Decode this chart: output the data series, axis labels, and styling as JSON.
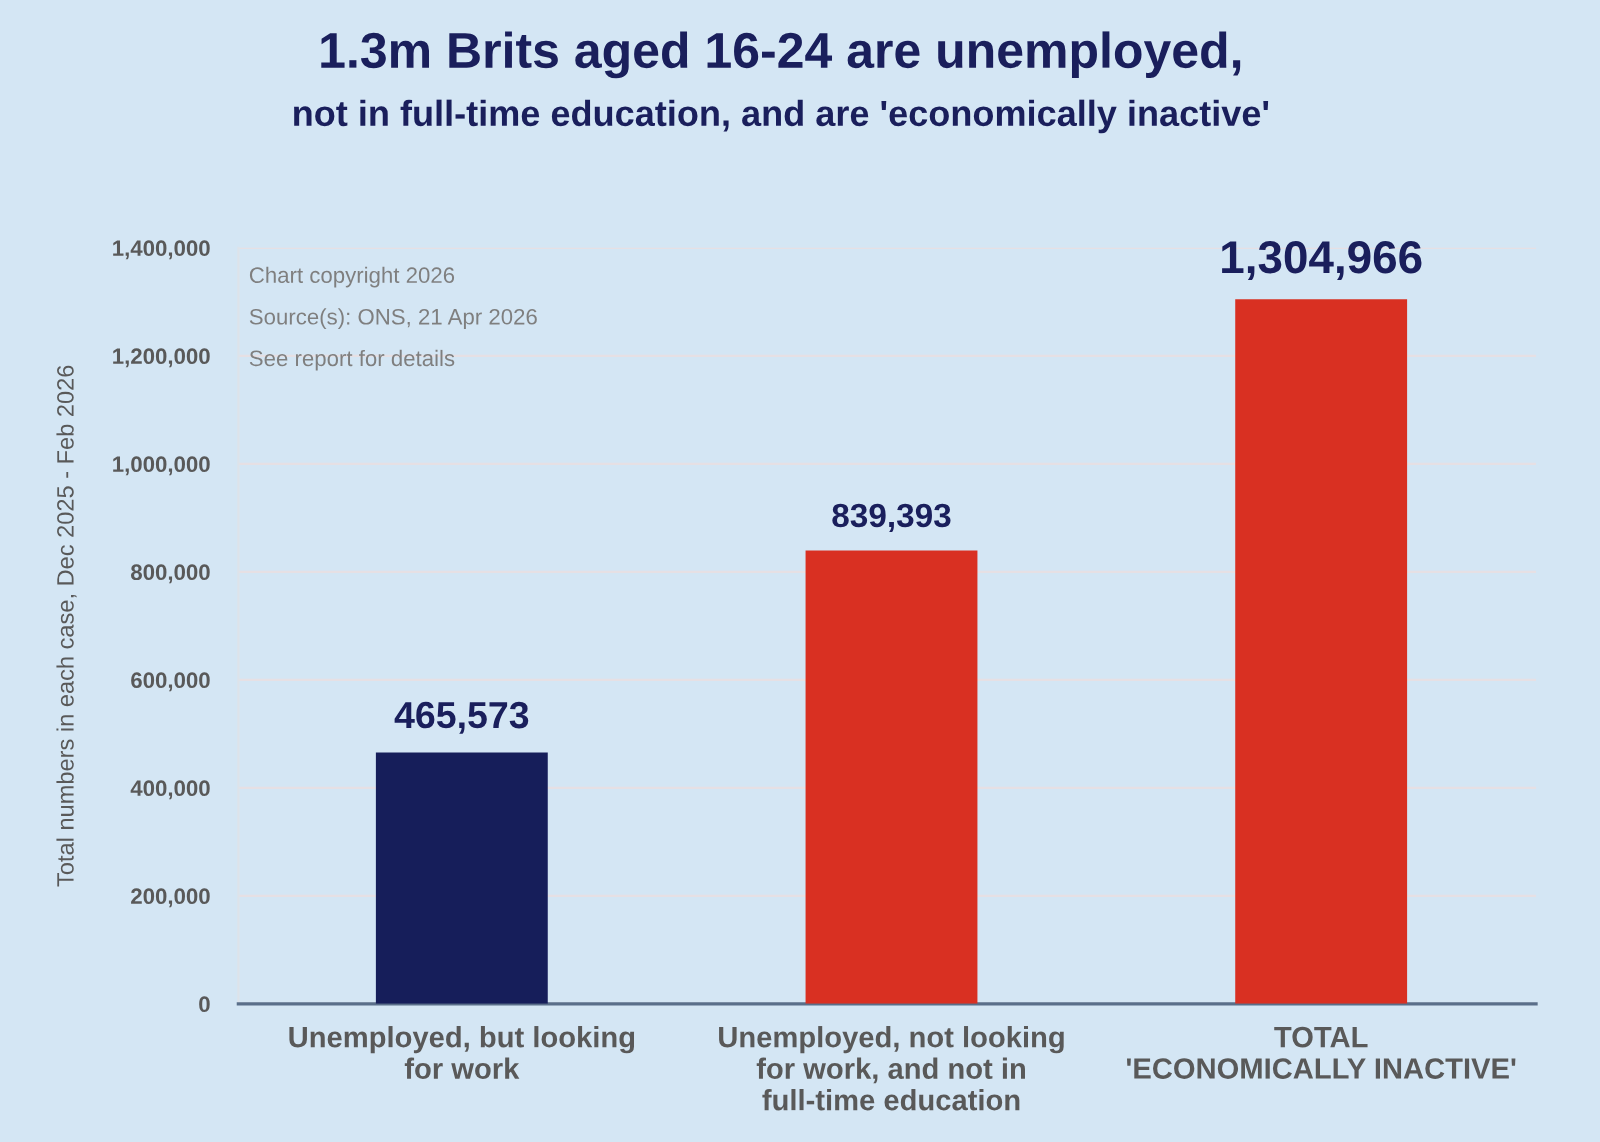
{
  "chart_data": {
    "type": "bar",
    "title": "1.3m Brits aged 16-24 are unemployed,",
    "subtitle": "not in full-time education, and are 'economically inactive'",
    "ylabel": "Total numbers in each case, Dec 2025 - Feb 2026",
    "categories": [
      "Unemployed, but looking\nfor work",
      "Unemployed, not looking\nfor work, and not in\nfull-time education",
      "TOTAL\n'ECONOMICALLY INACTIVE'"
    ],
    "values": [
      465573,
      839393,
      1304966
    ],
    "colors": [
      "#161e5a",
      "#d93022",
      "#d93022"
    ],
    "value_labels": [
      "465,573",
      "839,393",
      "1,304,966"
    ],
    "ylim": [
      0,
      1400000
    ],
    "yticks": [
      0,
      {
        "value": 200000,
        "label": "200,000"
      },
      {
        "value": 400000,
        "label": "400,000"
      },
      {
        "value": 600000,
        "label": "600,000"
      },
      {
        "value": 800000,
        "label": "800,000"
      },
      {
        "value": 1000000,
        "label": "1,000,000"
      },
      {
        "value": 1200000,
        "label": "1,200,000"
      },
      {
        "value": 1400000,
        "label": "1,400,000"
      }
    ],
    "grid": "y",
    "annotations": [
      "Chart copyright 2026",
      "Source(s): ONS, 21 Apr 2026",
      "See report for details"
    ]
  }
}
